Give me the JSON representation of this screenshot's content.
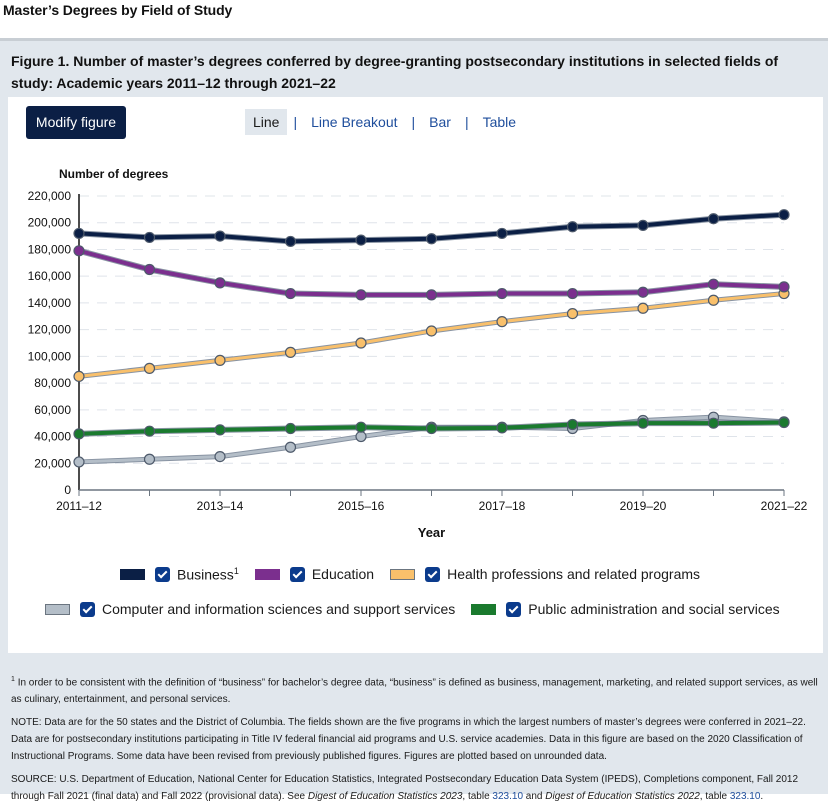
{
  "page": {
    "title": "Master’s Degrees by Field of Study"
  },
  "figure": {
    "heading": "Figure 1. Number of master’s degrees conferred by degree-granting postsecondary institutions in selected fields of study: Academic years 2011–12 through 2021–22",
    "modify_button": "Modify figure",
    "tabs": [
      {
        "label": "Line",
        "active": true
      },
      {
        "label": "Line Breakout",
        "active": false
      },
      {
        "label": "Bar",
        "active": false
      },
      {
        "label": "Table",
        "active": false
      }
    ],
    "tab_separator": "|"
  },
  "chart_data": {
    "type": "line",
    "title": "Number of master’s degrees conferred by degree-granting postsecondary institutions in selected fields of study",
    "ylabel": "Number of degrees",
    "xlabel": "Year",
    "ylim": [
      0,
      220000
    ],
    "yticks": [
      0,
      20000,
      40000,
      60000,
      80000,
      100000,
      120000,
      140000,
      160000,
      180000,
      200000,
      220000
    ],
    "ytick_labels": [
      "0",
      "20,000",
      "40,000",
      "60,000",
      "80,000",
      "100,000",
      "120,000",
      "140,000",
      "160,000",
      "180,000",
      "200,000",
      "220,000"
    ],
    "grid": true,
    "x": [
      "2011–12",
      "2012–13",
      "2013–14",
      "2014–15",
      "2015–16",
      "2016–17",
      "2017–18",
      "2018–19",
      "2019–20",
      "2020–21",
      "2021–22"
    ],
    "xtick_labels": [
      "2011–12",
      "2013–14",
      "2015–16",
      "2017–18",
      "2019–20",
      "2021–22"
    ],
    "legend_position": "bottom",
    "series": [
      {
        "name": "Business",
        "footnote": "1",
        "color": "#0b1f45",
        "values": [
          192000,
          189000,
          190000,
          186000,
          187000,
          188000,
          192000,
          197000,
          198000,
          203000,
          206000
        ]
      },
      {
        "name": "Education",
        "color": "#7b2f8e",
        "values": [
          179000,
          165000,
          155000,
          147000,
          146000,
          146000,
          147000,
          147000,
          148000,
          154000,
          152000
        ]
      },
      {
        "name": "Health professions and related programs",
        "color": "#f9c06b",
        "values": [
          85000,
          91000,
          97000,
          103000,
          110000,
          119000,
          126000,
          132000,
          136000,
          142000,
          147000
        ]
      },
      {
        "name": "Computer and information sciences and support services",
        "color": "#b4bec8",
        "values": [
          21000,
          23000,
          25000,
          32000,
          40000,
          47000,
          47000,
          46000,
          52000,
          54500,
          51000
        ]
      },
      {
        "name": "Public administration and social services",
        "color": "#1a7a2e",
        "values": [
          42000,
          44000,
          45000,
          46000,
          47000,
          46000,
          46500,
          49000,
          50000,
          50000,
          50500
        ]
      }
    ]
  },
  "legend": {
    "rows": [
      [
        0,
        1,
        2
      ],
      [
        3,
        4
      ]
    ]
  },
  "notes": {
    "footnote_marker": "1",
    "footnote": "In order to be consistent with the definition of “business” for bachelor’s degree data, “business” is defined as business, management, marketing, and related support services, as well as culinary, entertainment, and personal services.",
    "note": "NOTE: Data are for the 50 states and the District of Columbia. The fields shown are the five programs in which the largest numbers of master’s degrees were conferred in 2021–22. Data are for postsecondary institutions participating in Title IV federal financial aid programs and U.S. service academies. Data in this figure are based on the 2020 Classification of Instructional Programs. Some data have been revised from previously published figures. Figures are plotted based on unrounded data.",
    "source_prefix": "SOURCE: U.S. Department of Education, National Center for Education Statistics, Integrated Postsecondary Education Data System (IPEDS), Completions component, Fall 2012 through Fall 2021 (final data) and Fall 2022 (provisional data). See ",
    "source_pub1": "Digest of Education Statistics 2023",
    "source_mid1": ", table ",
    "source_link1": "323.10",
    "source_mid2": " and ",
    "source_pub2": "Digest of Education Statistics 2022",
    "source_mid3": ", table ",
    "source_link2": "323.10",
    "source_end": "."
  }
}
